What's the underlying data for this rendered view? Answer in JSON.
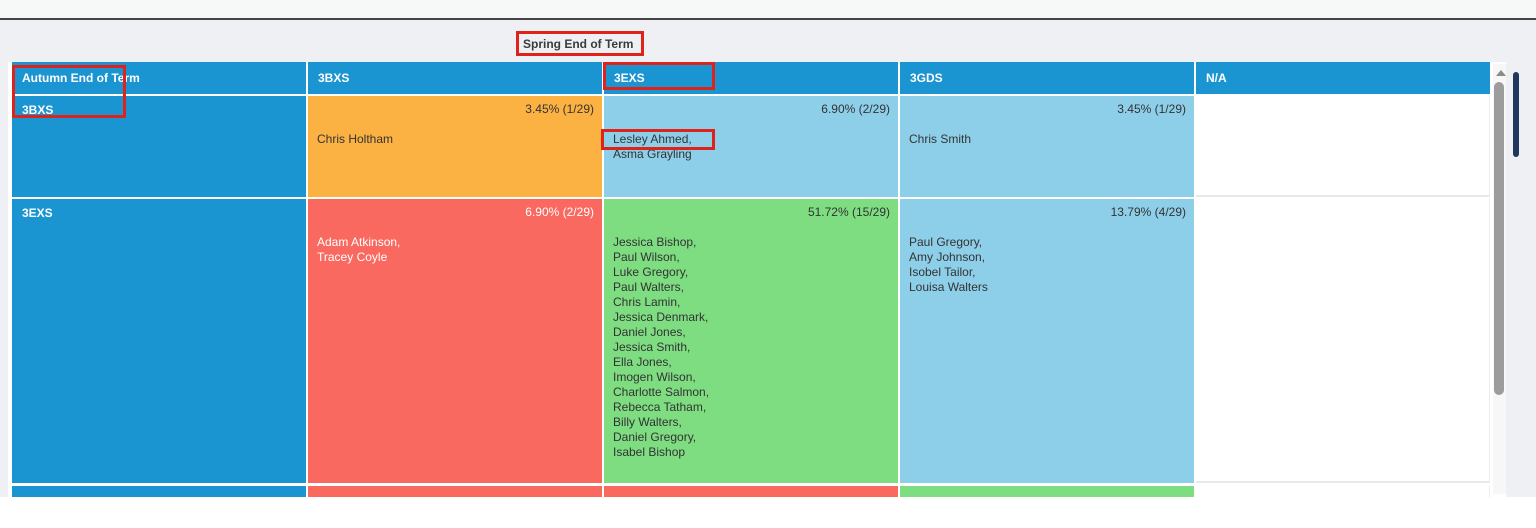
{
  "page": {
    "title": "Spring End of Term"
  },
  "table": {
    "corner_label": "Autumn End of Term",
    "columns": [
      "3BXS",
      "3EXS",
      "3GDS",
      "N/A"
    ],
    "rows": [
      {
        "label": "3BXS",
        "cells": [
          {
            "color": "orange",
            "pct": "3.45% (1/29)",
            "names": [
              "Chris Holtham"
            ]
          },
          {
            "color": "lightblue",
            "pct": "6.90% (2/29)",
            "names": [
              "Lesley Ahmed,",
              "Asma Grayling"
            ]
          },
          {
            "color": "lightblue",
            "pct": "3.45% (1/29)",
            "names": [
              "Chris Smith"
            ]
          },
          {
            "color": "white",
            "pct": "",
            "names": []
          }
        ]
      },
      {
        "label": "3EXS",
        "cells": [
          {
            "color": "red",
            "pct": "6.90% (2/29)",
            "names": [
              "Adam Atkinson,",
              "Tracey Coyle"
            ]
          },
          {
            "color": "green",
            "pct": "51.72% (15/29)",
            "names": [
              "Jessica Bishop,",
              "Paul Wilson,",
              "Luke Gregory,",
              "Paul Walters,",
              "Chris Lamin,",
              "Jessica Denmark,",
              "Daniel Jones,",
              "Jessica Smith,",
              "Ella Jones,",
              "Imogen Wilson,",
              "Charlotte Salmon,",
              "Rebecca Tatham,",
              "Billy Walters,",
              "Daniel Gregory,",
              "Isabel Bishop"
            ]
          },
          {
            "color": "lightblue",
            "pct": "13.79% (4/29)",
            "names": [
              "Paul Gregory,",
              "Amy Johnson,",
              "Isobel Tailor,",
              "Louisa Walters"
            ]
          },
          {
            "color": "white",
            "pct": "",
            "names": []
          }
        ]
      },
      {
        "label": "",
        "cells": [
          {
            "color": "red",
            "pct": "",
            "names": []
          },
          {
            "color": "red",
            "pct": "",
            "names": []
          },
          {
            "color": "green",
            "pct": "",
            "names": []
          },
          {
            "color": "white",
            "pct": "",
            "names": []
          }
        ]
      }
    ]
  },
  "colors": {
    "header_blue": "#1b94d2",
    "light_blue": "#8dcfe9",
    "orange": "#fbb242",
    "red": "#f9695f",
    "green": "#7edc81",
    "annotation_red": "#df231a",
    "page_background": "#eef0f4"
  },
  "annotations": {
    "color": "#df231a",
    "targets": [
      "autumn-end-of-term-header-and-3bxs-row-label",
      "spring-end-of-term-title",
      "3exs-column-header",
      "lesley-ahmed-student-name"
    ]
  }
}
